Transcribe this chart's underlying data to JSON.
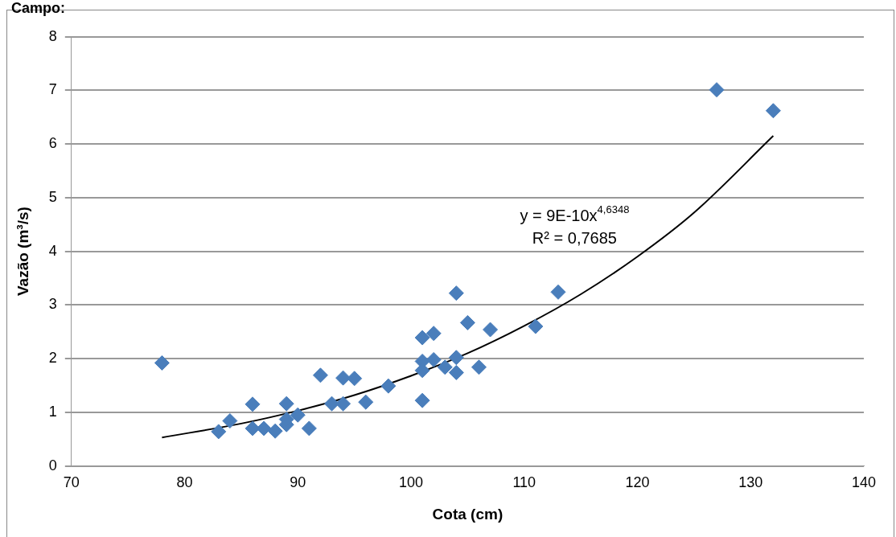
{
  "chart_data": {
    "type": "scatter",
    "title": "Campo:",
    "xlabel": "Cota (cm)",
    "ylabel": "Vazão (m³/s)",
    "xlim": [
      70,
      140
    ],
    "xticks": [
      70,
      80,
      90,
      100,
      110,
      120,
      130,
      140
    ],
    "ylim": [
      0,
      8
    ],
    "yticks": [
      0,
      1,
      2,
      3,
      4,
      5,
      6,
      7,
      8
    ],
    "grid": "y",
    "legend": false,
    "marker": "diamond",
    "annotations": [
      "y = 9E-10x$^{4,6348}$",
      "R² = 0,7685"
    ],
    "series": [
      {
        "type": "scatter",
        "color": "#4a7ebb",
        "x": [
          78,
          83,
          84,
          86,
          86,
          87,
          88,
          89,
          89,
          89,
          90,
          91,
          92,
          93,
          94,
          94,
          95,
          96,
          98,
          101,
          101,
          101,
          101,
          102,
          102,
          103,
          104,
          104,
          104,
          105,
          106,
          107,
          111,
          113,
          127,
          132
        ],
        "values": [
          1.92,
          0.64,
          0.84,
          1.15,
          0.7,
          0.7,
          0.65,
          1.16,
          0.77,
          0.87,
          0.95,
          0.7,
          1.69,
          1.16,
          1.64,
          1.16,
          1.63,
          1.19,
          1.49,
          2.39,
          1.95,
          1.78,
          1.22,
          2.47,
          1.98,
          1.84,
          3.22,
          2.02,
          1.74,
          2.67,
          1.84,
          2.54,
          2.6,
          3.24,
          7.01,
          6.62
        ]
      },
      {
        "type": "line",
        "color": "#000000",
        "marker": "none",
        "line_style": "solid",
        "x": [
          78,
          85,
          90,
          95,
          100,
          105,
          110,
          115,
          120,
          125,
          132
        ],
        "values": [
          0.53,
          0.79,
          1.03,
          1.32,
          1.68,
          2.1,
          2.61,
          3.2,
          3.9,
          4.72,
          6.15
        ]
      }
    ]
  }
}
